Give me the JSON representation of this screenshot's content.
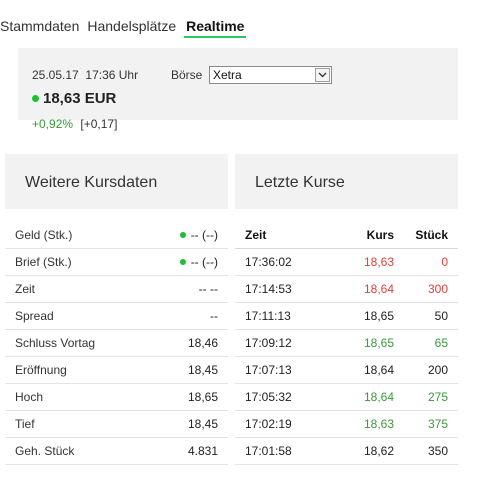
{
  "tabs": [
    {
      "label": "Stammdaten"
    },
    {
      "label": "Handelsplätze"
    },
    {
      "label": "Realtime"
    }
  ],
  "quote": {
    "date": "25.05.17",
    "time": "17:36 Uhr",
    "price": "18,63 EUR",
    "change_pct": "+0,92%",
    "change_abs": "[+0,17]",
    "boerse_label": "Börse",
    "boerse_value": "Xetra"
  },
  "left_panel": {
    "title": "Weitere Kursdaten",
    "rows": [
      {
        "label": "Geld (Stk.)",
        "value": "-- (--)"
      },
      {
        "label": "Brief (Stk.)",
        "value": "-- (--)"
      },
      {
        "label": "Zeit",
        "value": "-- --"
      },
      {
        "label": "Spread",
        "value": "--"
      },
      {
        "label": "Schluss Vortag",
        "value": "18,46"
      },
      {
        "label": "Eröffnung",
        "value": "18,45"
      },
      {
        "label": "Hoch",
        "value": "18,65"
      },
      {
        "label": "Tief",
        "value": "18,45"
      },
      {
        "label": "Geh. Stück",
        "value": "4.831"
      }
    ]
  },
  "right_panel": {
    "title": "Letzte Kurse",
    "headers": {
      "zeit": "Zeit",
      "kurs": "Kurs",
      "stueck": "Stück"
    },
    "rows": [
      {
        "zeit": "17:36:02",
        "kurs": "18,63",
        "stueck": "0",
        "kurs_color": "red",
        "stueck_color": "red"
      },
      {
        "zeit": "17:14:53",
        "kurs": "18,64",
        "stueck": "300",
        "kurs_color": "red",
        "stueck_color": "red"
      },
      {
        "zeit": "17:11:13",
        "kurs": "18,65",
        "stueck": "50",
        "kurs_color": "",
        "stueck_color": ""
      },
      {
        "zeit": "17:09:12",
        "kurs": "18,65",
        "stueck": "65",
        "kurs_color": "green",
        "stueck_color": "green"
      },
      {
        "zeit": "17:07:13",
        "kurs": "18,64",
        "stueck": "200",
        "kurs_color": "",
        "stueck_color": ""
      },
      {
        "zeit": "17:05:32",
        "kurs": "18,64",
        "stueck": "275",
        "kurs_color": "green",
        "stueck_color": "green"
      },
      {
        "zeit": "17:02:19",
        "kurs": "18,63",
        "stueck": "375",
        "kurs_color": "green",
        "stueck_color": "green"
      },
      {
        "zeit": "17:01:58",
        "kurs": "18,62",
        "stueck": "350",
        "kurs_color": "",
        "stueck_color": ""
      }
    ]
  },
  "colors": {
    "accent_green": "#2ec95e",
    "dot_green": "#19c02f",
    "up_green": "#3a9a3a",
    "down_red": "#e0413a",
    "panel_bg": "#f2f2f2"
  },
  "icons": {
    "live_dot": "live-dot-icon",
    "select_arrow": "chevron-down-icon"
  }
}
